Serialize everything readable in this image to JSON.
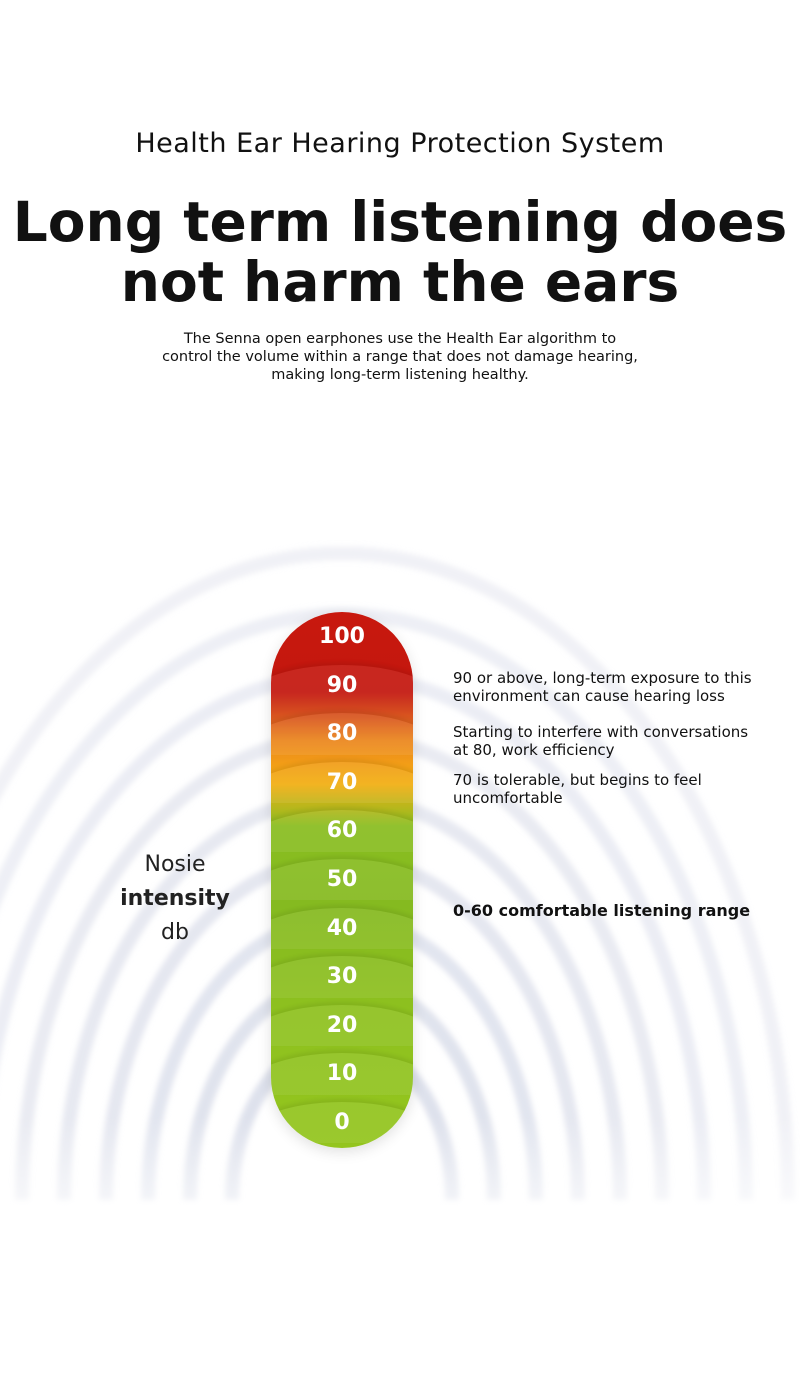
{
  "header": {
    "subtitle": "Health Ear Hearing Protection System",
    "headline_line1": "Long term listening does",
    "headline_line2": "not harm the ears",
    "description_lines": [
      "The Senna open earphones use the Health Ear algorithm to",
      "control the volume within a range that does not damage hearing,",
      "making long-term listening healthy."
    ]
  },
  "scale": {
    "axis_label_lines": [
      "Nosie",
      "intensity",
      "db"
    ],
    "ticks": [
      "100",
      "90",
      "80",
      "70",
      "60",
      "50",
      "40",
      "30",
      "20",
      "10",
      "0"
    ],
    "colors": {
      "danger": "#c8180e",
      "warning": "#ea7d0c",
      "caution": "#f3a800",
      "safe": "#8cc10d"
    }
  },
  "notes": [
    {
      "line1": "90 or above, long-term exposure to this",
      "line2": "environment can cause hearing loss"
    },
    {
      "line1": "Starting to interfere with conversations",
      "line2": "at 80, work efficiency"
    },
    {
      "line1": "70 is tolerable, but begins to feel",
      "line2": "uncomfortable"
    },
    {
      "line1": "0-60 comfortable listening range",
      "line2": ""
    }
  ]
}
